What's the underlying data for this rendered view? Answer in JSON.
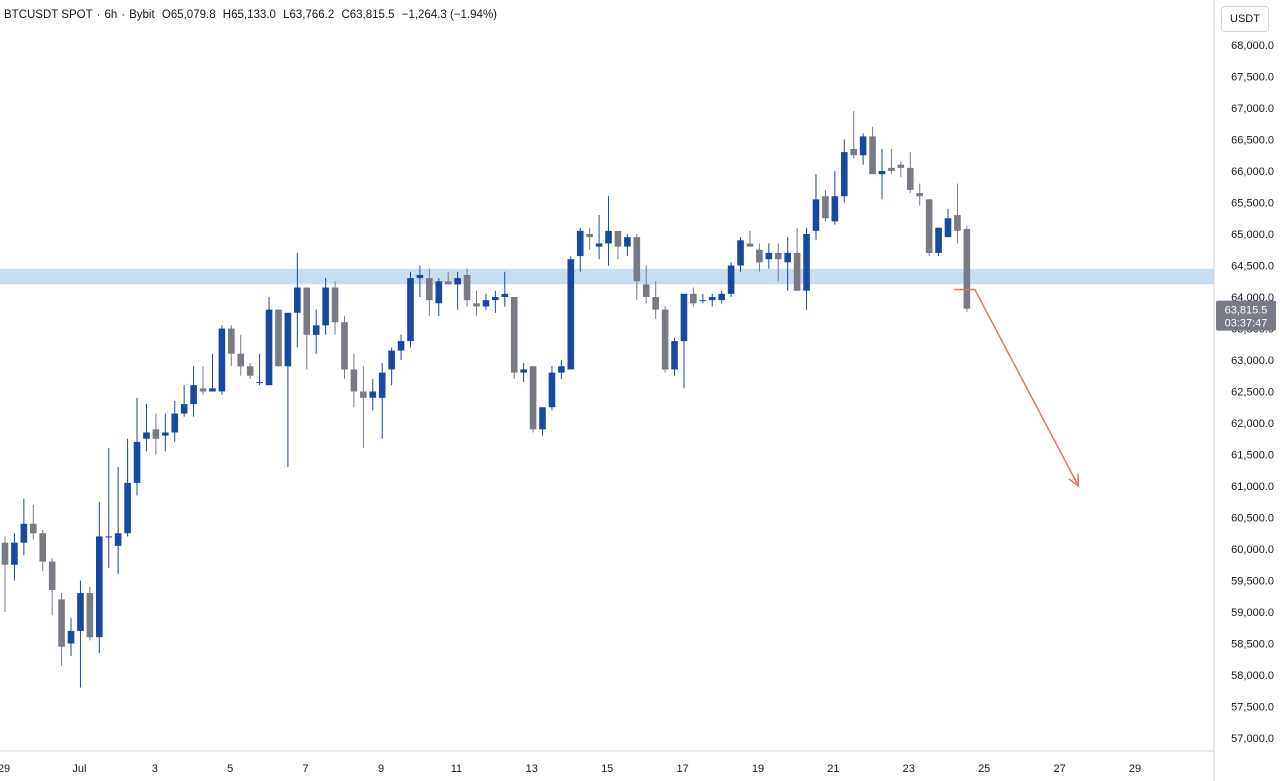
{
  "header": {
    "symbol": "BTCUSDT SPOT",
    "interval": "6h",
    "exchange": "Bybit",
    "open": "O65,079.8",
    "high": "H65,133.0",
    "low": "L63,766.2",
    "close": "C63,815.5",
    "change": "−1,264.3 (−1.94%)"
  },
  "price_axis": {
    "unit": "USDT"
  },
  "last_price": {
    "value": "63,815.5",
    "countdown": "03:37:47"
  },
  "colors": {
    "up": "#1848a0",
    "down": "#787b86",
    "zone": "#bcd4ee",
    "arrow": "#e07a5f",
    "grid": "#d1d4dc",
    "label_bg": "#787b86"
  },
  "chart_data": {
    "type": "candlestick",
    "y_ticks": [
      57000,
      57500,
      58000,
      58500,
      59000,
      59500,
      60000,
      60500,
      61000,
      61500,
      62000,
      62500,
      63000,
      63500,
      64000,
      64500,
      65000,
      65500,
      66000,
      66500,
      67000,
      67500,
      68000
    ],
    "y_tick_labels": [
      "57,000.0",
      "57,500.0",
      "58,000.0",
      "58,500.0",
      "59,000.0",
      "59,500.0",
      "60,000.0",
      "60,500.0",
      "61,000.0",
      "61,500.0",
      "62,000.0",
      "62,500.0",
      "63,000.0",
      "63,500.0",
      "64,000.0",
      "64,500.0",
      "65,000.0",
      "65,500.0",
      "66,000.0",
      "66,500.0",
      "67,000.0",
      "67,500.0",
      "68,000.0"
    ],
    "x_tick_labels": [
      {
        "label": "29",
        "day": 0
      },
      {
        "label": "Jul",
        "day": 2
      },
      {
        "label": "3",
        "day": 4
      },
      {
        "label": "5",
        "day": 6
      },
      {
        "label": "7",
        "day": 8
      },
      {
        "label": "9",
        "day": 10
      },
      {
        "label": "11",
        "day": 12
      },
      {
        "label": "13",
        "day": 14
      },
      {
        "label": "15",
        "day": 16
      },
      {
        "label": "17",
        "day": 18
      },
      {
        "label": "19",
        "day": 20
      },
      {
        "label": "21",
        "day": 22
      },
      {
        "label": "23",
        "day": 24
      },
      {
        "label": "25",
        "day": 26
      },
      {
        "label": "27",
        "day": 28
      },
      {
        "label": "29",
        "day": 30
      }
    ],
    "zone": {
      "low": 64250,
      "high": 64400
    },
    "projection": [
      {
        "day": 25.2,
        "price": 64120
      },
      {
        "day": 25.75,
        "price": 64120
      },
      {
        "day": 28.5,
        "price": 61000
      }
    ],
    "candles": [
      [
        60100,
        60200,
        59000,
        59750
      ],
      [
        59750,
        60250,
        59500,
        60100
      ],
      [
        60100,
        60800,
        59900,
        60400
      ],
      [
        60400,
        60700,
        60150,
        60250
      ],
      [
        60250,
        60300,
        59650,
        59800
      ],
      [
        59800,
        59850,
        58950,
        59350
      ],
      [
        59200,
        59300,
        58150,
        58450
      ],
      [
        58500,
        58900,
        58300,
        58700
      ],
      [
        58700,
        59500,
        57800,
        59300
      ],
      [
        59300,
        59400,
        58550,
        58600
      ],
      [
        58600,
        60750,
        58350,
        60200
      ],
      [
        60200,
        61600,
        59700,
        60200
      ],
      [
        60050,
        61300,
        59600,
        60250
      ],
      [
        60250,
        61750,
        60200,
        61050
      ],
      [
        61050,
        62400,
        60850,
        61700
      ],
      [
        61750,
        62300,
        61550,
        61850
      ],
      [
        61900,
        62150,
        61500,
        61750
      ],
      [
        61800,
        62150,
        61550,
        61850
      ],
      [
        61850,
        62350,
        61700,
        62150
      ],
      [
        62150,
        62600,
        62100,
        62300
      ],
      [
        62300,
        62900,
        62100,
        62600
      ],
      [
        62550,
        62900,
        62450,
        62500
      ],
      [
        62500,
        63100,
        62500,
        62550
      ],
      [
        62500,
        63550,
        62450,
        63500
      ],
      [
        63500,
        63550,
        62900,
        63100
      ],
      [
        63100,
        63400,
        62750,
        62900
      ],
      [
        62900,
        62950,
        62700,
        62750
      ],
      [
        62650,
        63100,
        62600,
        62650
      ],
      [
        62600,
        64000,
        62600,
        63800
      ],
      [
        63800,
        63800,
        62900,
        62900
      ],
      [
        62900,
        63700,
        61300,
        63750
      ],
      [
        63750,
        64700,
        63200,
        64150
      ],
      [
        64150,
        64150,
        62850,
        63400
      ],
      [
        63400,
        63800,
        63100,
        63550
      ],
      [
        63550,
        64300,
        63400,
        64150
      ],
      [
        64150,
        64250,
        63400,
        63600
      ],
      [
        63600,
        63700,
        62700,
        62850
      ],
      [
        62850,
        63100,
        62250,
        62500
      ],
      [
        62500,
        62900,
        61600,
        62400
      ],
      [
        62400,
        62700,
        62200,
        62500
      ],
      [
        62400,
        62950,
        61750,
        62800
      ],
      [
        62850,
        63200,
        62600,
        63150
      ],
      [
        63150,
        63400,
        63000,
        63300
      ],
      [
        63300,
        64400,
        63200,
        64300
      ],
      [
        64300,
        64500,
        64000,
        64350
      ],
      [
        64300,
        64450,
        63700,
        63950
      ],
      [
        63900,
        64300,
        63700,
        64250
      ],
      [
        64250,
        64400,
        64200,
        64200
      ],
      [
        64200,
        64400,
        63800,
        64300
      ],
      [
        64350,
        64450,
        63850,
        63950
      ],
      [
        63900,
        64100,
        63700,
        63850
      ],
      [
        63850,
        64050,
        63800,
        63950
      ],
      [
        63950,
        64100,
        63750,
        64000
      ],
      [
        64000,
        64400,
        63850,
        64050
      ],
      [
        64000,
        64000,
        62700,
        62800
      ],
      [
        62800,
        62950,
        62650,
        62850
      ],
      [
        62900,
        62900,
        61850,
        61900
      ],
      [
        61900,
        62250,
        61800,
        62250
      ],
      [
        62250,
        62900,
        62200,
        62800
      ],
      [
        62800,
        63000,
        62700,
        62900
      ],
      [
        62850,
        64650,
        62850,
        64600
      ],
      [
        64650,
        65100,
        64400,
        65050
      ],
      [
        65000,
        65100,
        64750,
        64950
      ],
      [
        64800,
        65300,
        64600,
        64850
      ],
      [
        64850,
        65600,
        64500,
        65050
      ],
      [
        65050,
        65050,
        64600,
        64800
      ],
      [
        64800,
        65000,
        64650,
        64950
      ],
      [
        64950,
        65000,
        63950,
        64250
      ],
      [
        64200,
        64500,
        63900,
        64000
      ],
      [
        64000,
        64250,
        63650,
        63800
      ],
      [
        63800,
        63850,
        62800,
        62850
      ],
      [
        62850,
        63350,
        62750,
        63300
      ],
      [
        63300,
        64000,
        62550,
        64050
      ],
      [
        64050,
        64150,
        63850,
        63900
      ],
      [
        63950,
        64050,
        63900,
        63950
      ],
      [
        63950,
        64050,
        63850,
        64000
      ],
      [
        63950,
        64100,
        63900,
        64050
      ],
      [
        64050,
        64550,
        64000,
        64500
      ],
      [
        64500,
        64950,
        64400,
        64900
      ],
      [
        64850,
        65050,
        64800,
        64800
      ],
      [
        64750,
        64850,
        64400,
        64550
      ],
      [
        64600,
        64850,
        64450,
        64700
      ],
      [
        64700,
        64850,
        64250,
        64600
      ],
      [
        64550,
        64950,
        64100,
        64700
      ],
      [
        64700,
        65100,
        64100,
        64100
      ],
      [
        64100,
        65100,
        63800,
        65000
      ],
      [
        65050,
        65950,
        64900,
        65550
      ],
      [
        65600,
        65700,
        65200,
        65250
      ],
      [
        65200,
        66000,
        65150,
        65600
      ],
      [
        65600,
        66500,
        65500,
        66300
      ],
      [
        66350,
        66950,
        66200,
        66250
      ],
      [
        66250,
        66600,
        66100,
        66550
      ],
      [
        66550,
        66700,
        65950,
        65950
      ],
      [
        65950,
        66350,
        65550,
        66000
      ],
      [
        66050,
        66350,
        65950,
        66000
      ],
      [
        66100,
        66150,
        65900,
        66050
      ],
      [
        66050,
        66300,
        65650,
        65700
      ],
      [
        65650,
        65800,
        65450,
        65600
      ],
      [
        65550,
        65550,
        64650,
        64700
      ],
      [
        64700,
        65100,
        64650,
        65100
      ],
      [
        64950,
        65400,
        64950,
        65250
      ],
      [
        65300,
        65800,
        64850,
        65050
      ],
      [
        65079.8,
        65133,
        63766.2,
        63815.5
      ]
    ]
  }
}
